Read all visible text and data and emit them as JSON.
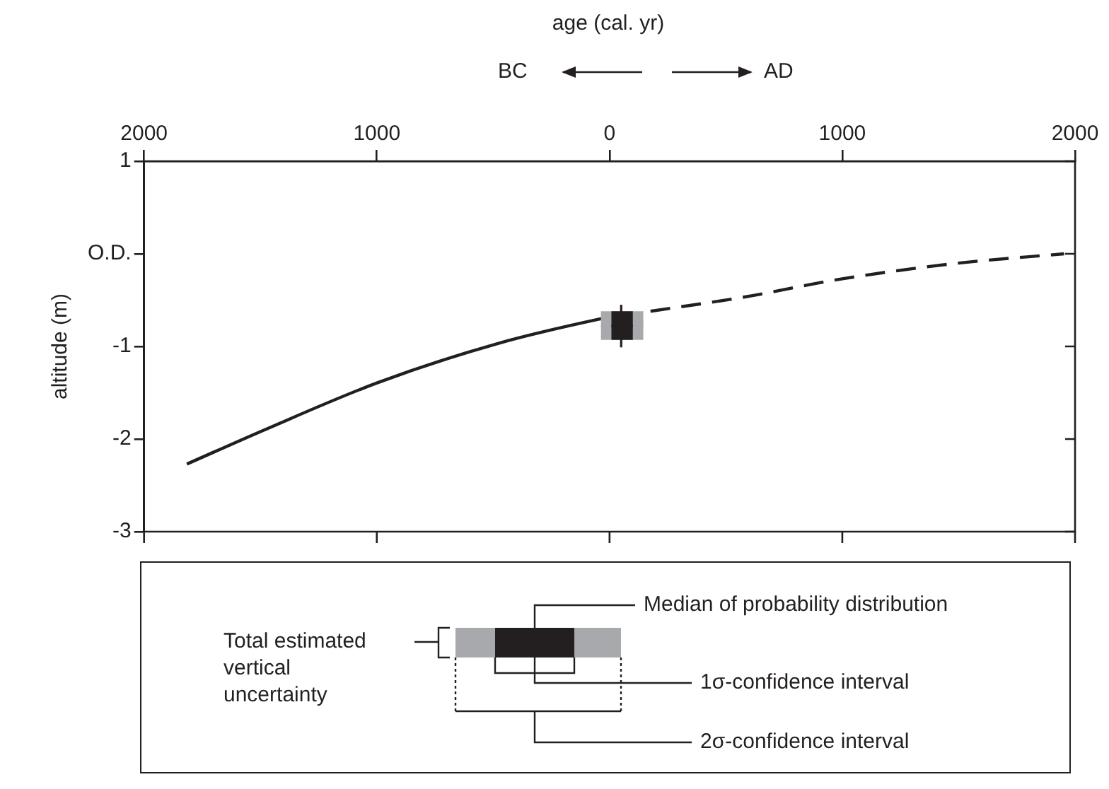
{
  "chart_data": {
    "type": "line",
    "xlabel": "age (cal. yr)",
    "ylabel": "altitude (m)",
    "xlim": [
      -2000,
      2000
    ],
    "xticks": [
      {
        "value": -2000,
        "label": "2000"
      },
      {
        "value": -1000,
        "label": "1000"
      },
      0,
      1000,
      2000
    ],
    "ylim": [
      -3,
      1
    ],
    "yticks": [
      -3,
      -2,
      -1,
      {
        "value": 0,
        "label": "O.D."
      },
      1
    ],
    "grid": false,
    "legend": false,
    "marker": "none",
    "series": [
      {
        "type": "line",
        "line_style": "solid",
        "color": "#231f20",
        "x": [
          -1816,
          -1482,
          -995,
          -482,
          -34,
          50
        ],
        "values": [
          -2.27,
          -1.9,
          -1.39,
          -0.97,
          -0.7,
          -0.66
        ]
      },
      {
        "type": "line",
        "line_style": "dashed",
        "color": "#231f20",
        "x": [
          176,
          571,
          1000,
          1500,
          1953
        ],
        "values": [
          -0.62,
          -0.47,
          -0.27,
          -0.1,
          0
        ]
      },
      {
        "type": "scatter",
        "marker": "square",
        "color": "#a7a9ac",
        "x": [
          50
        ],
        "values": [
          -0.78
        ],
        "xerrors": [
          [
            -37,
            145
          ]
        ],
        "errors": [
          [
            -0.93,
            -0.62
          ]
        ]
      },
      {
        "type": "scatter",
        "marker": "square",
        "color": "#231f20",
        "x": [
          50
        ],
        "values": [
          -0.78
        ],
        "xerrors": [
          [
            8,
            100
          ]
        ],
        "errors": [
          [
            -1.01,
            -0.55
          ]
        ]
      }
    ],
    "annotations": [
      "BC",
      "AD",
      "Median of probability distribution",
      "Total estimated vertical uncertainty",
      "1σ-confidence interval",
      "2σ-confidence interval"
    ]
  }
}
